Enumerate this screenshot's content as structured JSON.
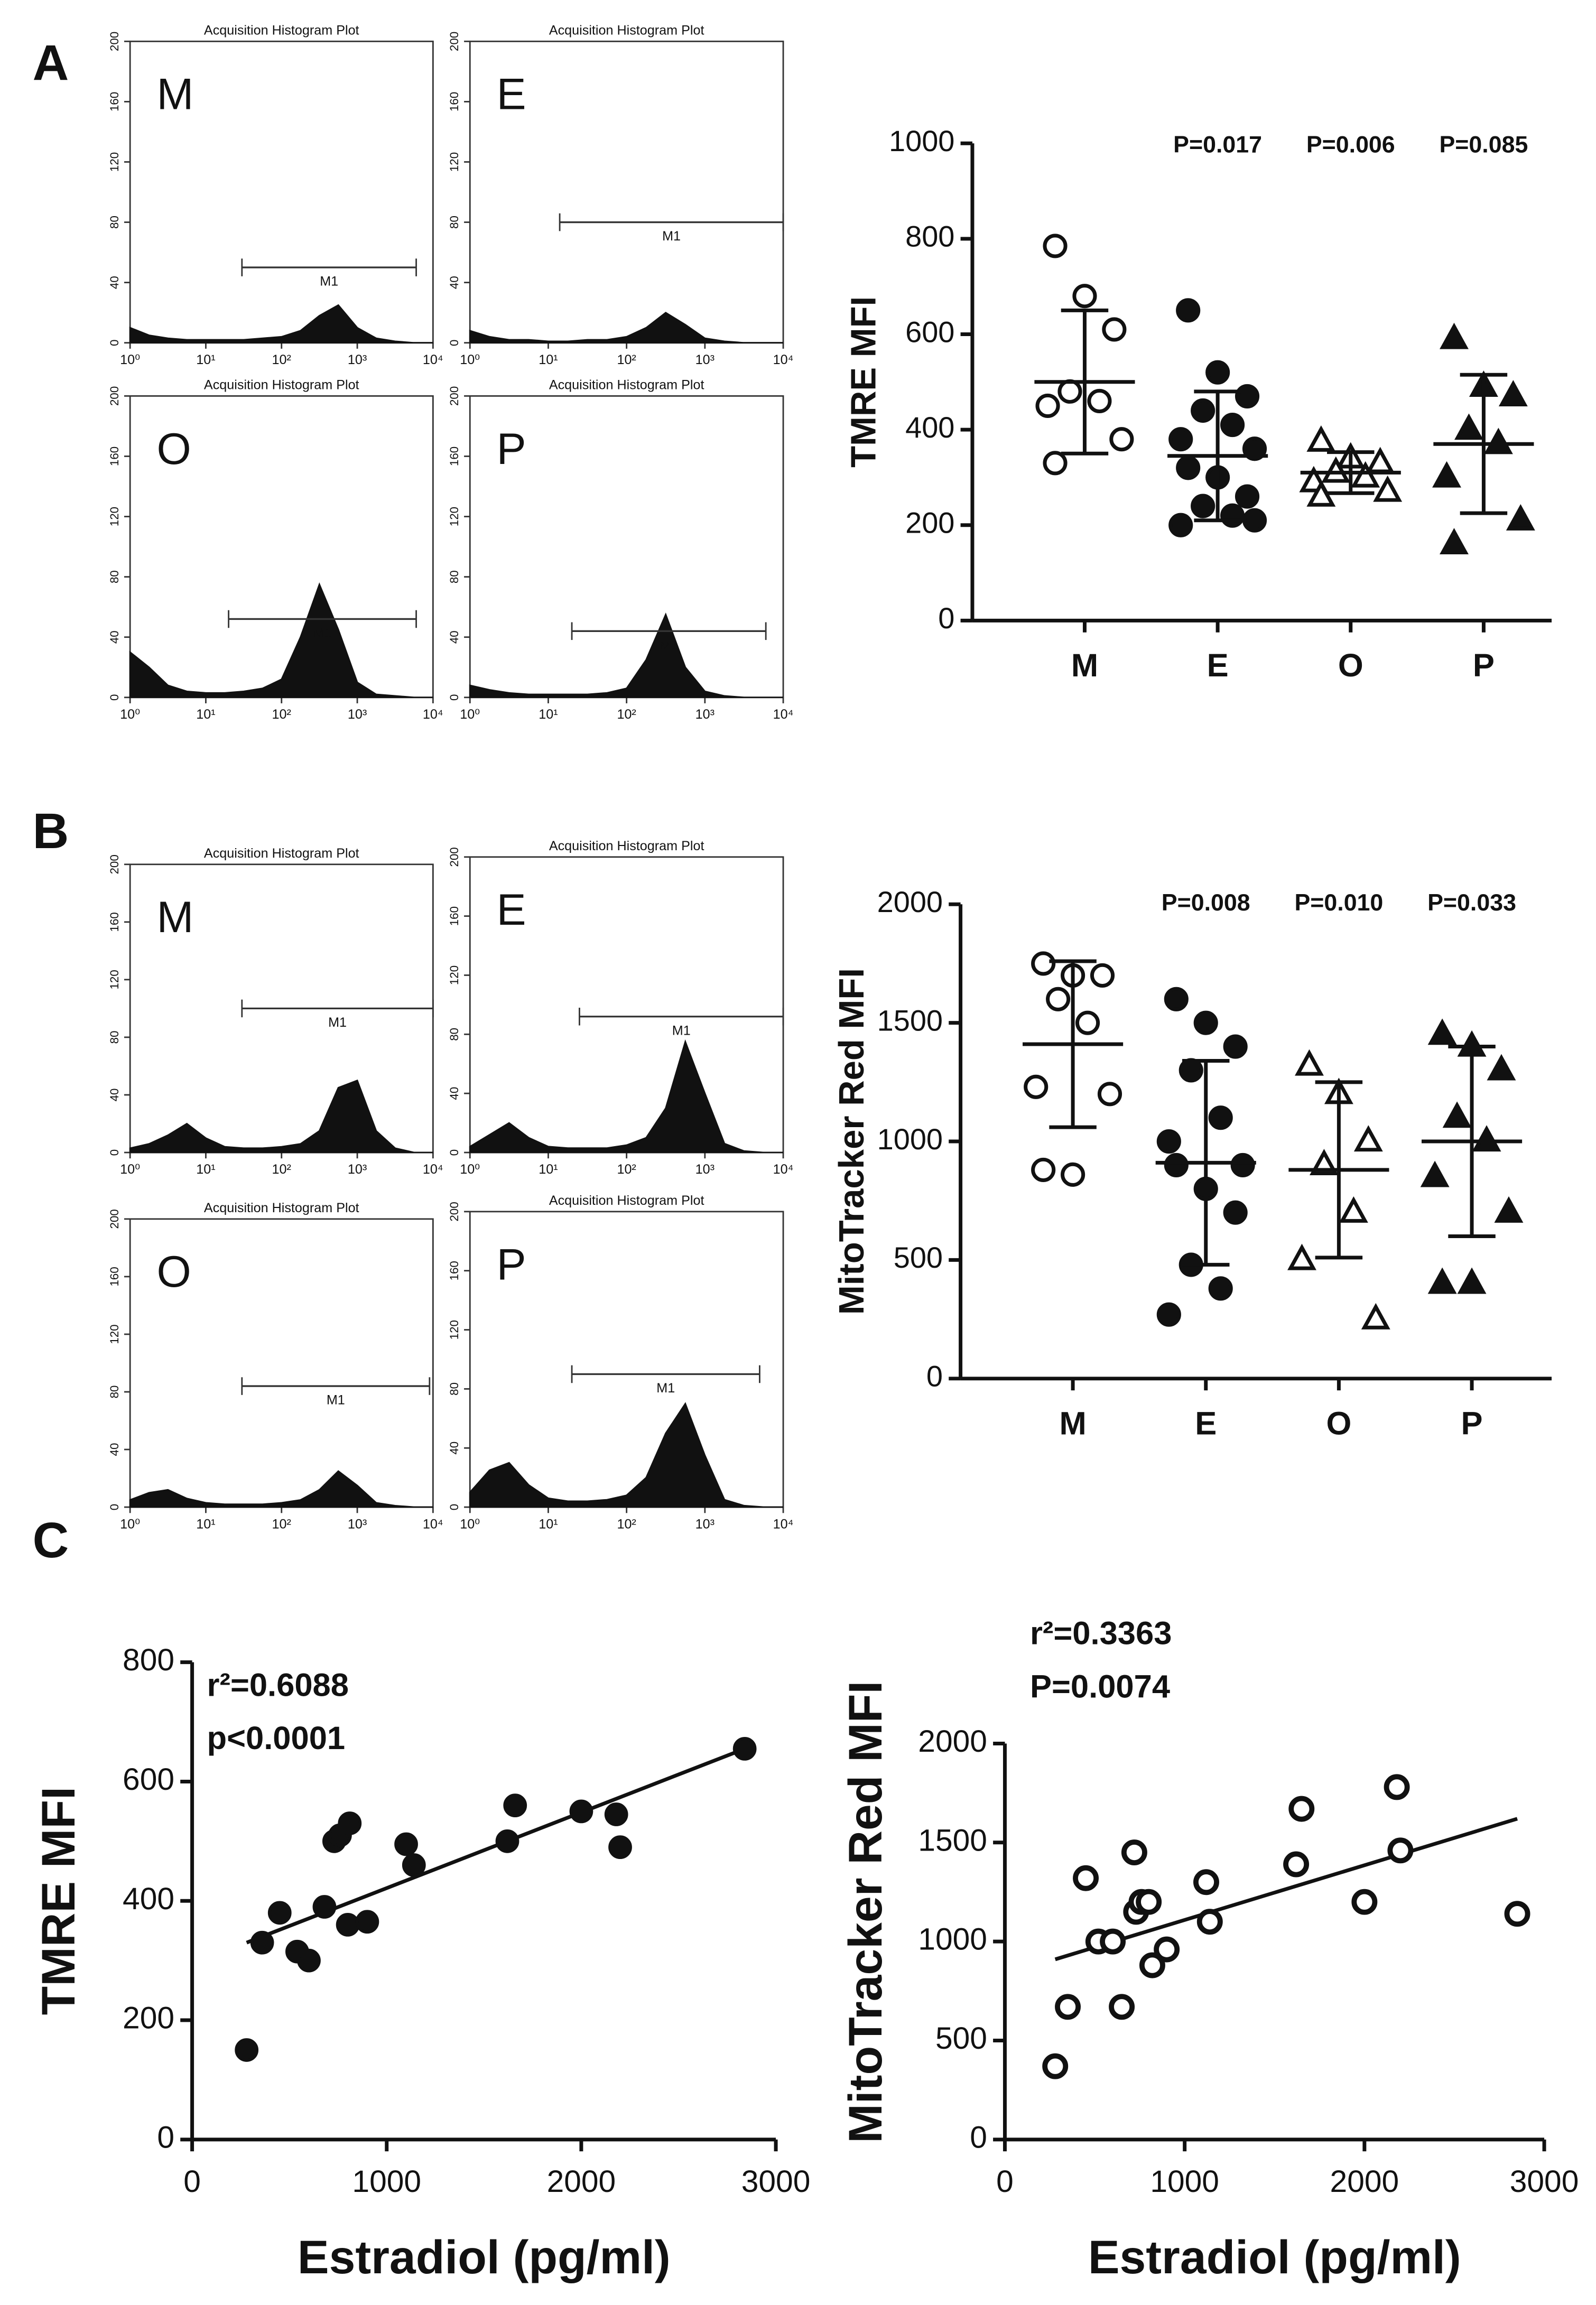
{
  "panel_labels": [
    "A",
    "B",
    "C"
  ],
  "chart_data": [
    {
      "type": "area",
      "title": "Acquisition Histogram Plot",
      "label": "M",
      "xscale": "log",
      "x": [
        1,
        1.78,
        3.16,
        5.62,
        10,
        17.8,
        31.6,
        56.2,
        100,
        178,
        316,
        562,
        1000,
        1778,
        3162,
        5623,
        10000
      ],
      "values": [
        10,
        5,
        3,
        2,
        2,
        2,
        2,
        3,
        4,
        8,
        18,
        25,
        10,
        3,
        1,
        0,
        0
      ],
      "xlim": [
        1,
        10000
      ],
      "xticks": [
        {
          "value": 1,
          "label": "10⁰"
        },
        {
          "value": 10,
          "label": "10¹"
        },
        {
          "value": 100,
          "label": "10²"
        },
        {
          "value": 1000,
          "label": "10³"
        },
        {
          "value": 10000,
          "label": "10⁴"
        }
      ],
      "ylim": [
        0,
        200
      ],
      "yticks": [
        0,
        40,
        80,
        120,
        160,
        200
      ],
      "color": "#111111",
      "gate": {
        "label": "M1",
        "range": [
          30,
          6000
        ]
      }
    },
    {
      "type": "area",
      "title": "Acquisition Histogram Plot",
      "label": "E",
      "xscale": "log",
      "x": [
        1,
        1.78,
        3.16,
        5.62,
        10,
        17.8,
        31.6,
        56.2,
        100,
        178,
        316,
        562,
        1000,
        1778,
        3162,
        5623,
        10000
      ],
      "values": [
        8,
        4,
        2,
        2,
        1,
        1,
        2,
        2,
        4,
        10,
        20,
        12,
        3,
        1,
        0,
        0,
        0
      ],
      "xlim": [
        1,
        10000
      ],
      "xticks": [
        {
          "value": 1,
          "label": "10⁰"
        },
        {
          "value": 10,
          "label": "10¹"
        },
        {
          "value": 100,
          "label": "10²"
        },
        {
          "value": 1000,
          "label": "10³"
        },
        {
          "value": 10000,
          "label": "10⁴"
        }
      ],
      "ylim": [
        0,
        200
      ],
      "yticks": [
        0,
        40,
        80,
        120,
        160,
        200
      ],
      "color": "#111111",
      "gate": {
        "label": "M1",
        "range": [
          14,
          10000
        ]
      }
    },
    {
      "type": "area",
      "title": "Acquisition Histogram Plot",
      "label": "O",
      "xscale": "log",
      "x": [
        1,
        1.78,
        3.16,
        5.62,
        10,
        17.8,
        31.6,
        56.2,
        100,
        178,
        316,
        562,
        1000,
        1778,
        3162,
        5623,
        10000
      ],
      "values": [
        30,
        20,
        8,
        4,
        3,
        3,
        4,
        6,
        12,
        40,
        75,
        45,
        10,
        2,
        1,
        0,
        0
      ],
      "xlim": [
        1,
        10000
      ],
      "xticks": [
        {
          "value": 1,
          "label": "10⁰"
        },
        {
          "value": 10,
          "label": "10¹"
        },
        {
          "value": 100,
          "label": "10²"
        },
        {
          "value": 1000,
          "label": "10³"
        },
        {
          "value": 10000,
          "label": "10⁴"
        }
      ],
      "ylim": [
        0,
        200
      ],
      "yticks": [
        0,
        40,
        80,
        120,
        160,
        200
      ],
      "color": "#111111",
      "gate": {
        "label": "M1",
        "range": [
          20,
          6000
        ]
      }
    },
    {
      "type": "area",
      "title": "Acquisition Histogram Plot",
      "label": "P",
      "xscale": "log",
      "x": [
        1,
        1.78,
        3.16,
        5.62,
        10,
        17.8,
        31.6,
        56.2,
        100,
        178,
        316,
        562,
        1000,
        1778,
        3162,
        5623,
        10000
      ],
      "values": [
        8,
        5,
        3,
        2,
        2,
        2,
        2,
        3,
        6,
        25,
        55,
        20,
        4,
        1,
        0,
        0,
        0
      ],
      "xlim": [
        1,
        10000
      ],
      "xticks": [
        {
          "value": 1,
          "label": "10⁰"
        },
        {
          "value": 10,
          "label": "10¹"
        },
        {
          "value": 100,
          "label": "10²"
        },
        {
          "value": 1000,
          "label": "10³"
        },
        {
          "value": 10000,
          "label": "10⁴"
        }
      ],
      "ylim": [
        0,
        200
      ],
      "yticks": [
        0,
        40,
        80,
        120,
        160,
        200
      ],
      "color": "#111111",
      "gate": {
        "label": "M1",
        "range": [
          20,
          6000
        ]
      }
    },
    {
      "type": "area",
      "title": "Acquisition Histogram Plot",
      "label": "M",
      "xscale": "log",
      "x": [
        1,
        1.78,
        3.16,
        5.62,
        10,
        17.8,
        31.6,
        56.2,
        100,
        178,
        316,
        562,
        1000,
        1778,
        3162,
        5623,
        10000
      ],
      "values": [
        3,
        6,
        12,
        20,
        10,
        4,
        3,
        3,
        4,
        6,
        15,
        45,
        50,
        15,
        3,
        0,
        0
      ],
      "xlim": [
        1,
        10000
      ],
      "xticks": [
        {
          "value": 1,
          "label": "10⁰"
        },
        {
          "value": 10,
          "label": "10¹"
        },
        {
          "value": 100,
          "label": "10²"
        },
        {
          "value": 1000,
          "label": "10³"
        },
        {
          "value": 10000,
          "label": "10⁴"
        }
      ],
      "ylim": [
        0,
        200
      ],
      "yticks": [
        0,
        40,
        80,
        120,
        160,
        200
      ],
      "color": "#111111",
      "gate": {
        "label": "M1",
        "range": [
          30,
          10000
        ]
      }
    },
    {
      "type": "area",
      "title": "Acquisition Histogram Plot",
      "label": "E",
      "xscale": "log",
      "x": [
        1,
        1.78,
        3.16,
        5.62,
        10,
        17.8,
        31.6,
        56.2,
        100,
        178,
        316,
        562,
        1000,
        1778,
        3162,
        5623,
        10000
      ],
      "values": [
        4,
        12,
        20,
        10,
        4,
        3,
        3,
        3,
        5,
        10,
        30,
        75,
        40,
        6,
        1,
        0,
        0
      ],
      "xlim": [
        1,
        10000
      ],
      "xticks": [
        {
          "value": 1,
          "label": "10⁰"
        },
        {
          "value": 10,
          "label": "10¹"
        },
        {
          "value": 100,
          "label": "10²"
        },
        {
          "value": 1000,
          "label": "10³"
        },
        {
          "value": 10000,
          "label": "10⁴"
        }
      ],
      "ylim": [
        0,
        200
      ],
      "yticks": [
        0,
        40,
        80,
        120,
        160,
        200
      ],
      "color": "#111111",
      "gate": {
        "label": "M1",
        "range": [
          25,
          10000
        ]
      }
    },
    {
      "type": "area",
      "title": "Acquisition Histogram Plot",
      "label": "O",
      "xscale": "log",
      "x": [
        1,
        1.78,
        3.16,
        5.62,
        10,
        17.8,
        31.6,
        56.2,
        100,
        178,
        316,
        562,
        1000,
        1778,
        3162,
        5623,
        10000
      ],
      "values": [
        5,
        10,
        12,
        6,
        3,
        2,
        2,
        2,
        3,
        5,
        12,
        25,
        15,
        3,
        1,
        0,
        0
      ],
      "xlim": [
        1,
        10000
      ],
      "xticks": [
        {
          "value": 1,
          "label": "10⁰"
        },
        {
          "value": 10,
          "label": "10¹"
        },
        {
          "value": 100,
          "label": "10²"
        },
        {
          "value": 1000,
          "label": "10³"
        },
        {
          "value": 10000,
          "label": "10⁴"
        }
      ],
      "ylim": [
        0,
        200
      ],
      "yticks": [
        0,
        40,
        80,
        120,
        160,
        200
      ],
      "color": "#111111",
      "gate": {
        "label": "M1",
        "range": [
          30,
          9000
        ]
      }
    },
    {
      "type": "area",
      "title": "Acquisition Histogram Plot",
      "label": "P",
      "xscale": "log",
      "x": [
        1,
        1.78,
        3.16,
        5.62,
        10,
        17.8,
        31.6,
        56.2,
        100,
        178,
        316,
        562,
        1000,
        1778,
        3162,
        5623,
        10000
      ],
      "values": [
        10,
        25,
        30,
        15,
        6,
        4,
        4,
        5,
        8,
        20,
        50,
        70,
        35,
        5,
        1,
        0,
        0
      ],
      "xlim": [
        1,
        10000
      ],
      "xticks": [
        {
          "value": 1,
          "label": "10⁰"
        },
        {
          "value": 10,
          "label": "10¹"
        },
        {
          "value": 100,
          "label": "10²"
        },
        {
          "value": 1000,
          "label": "10³"
        },
        {
          "value": 10000,
          "label": "10⁴"
        }
      ],
      "ylim": [
        0,
        200
      ],
      "yticks": [
        0,
        40,
        80,
        120,
        160,
        200
      ],
      "color": "#111111",
      "gate": {
        "label": "M1",
        "range": [
          20,
          5000
        ]
      }
    },
    {
      "type": "dot",
      "ylabel": "TMRE MFI",
      "ylim": [
        0,
        1000
      ],
      "yticks": [
        0,
        200,
        400,
        600,
        800,
        1000
      ],
      "groups": [
        {
          "name": "M",
          "marker": "circle-open",
          "values": [
            785,
            680,
            610,
            480,
            460,
            450,
            380,
            330
          ],
          "mean": 500,
          "sd": 150
        },
        {
          "name": "E",
          "marker": "circle-filled",
          "values": [
            650,
            520,
            470,
            440,
            410,
            380,
            360,
            320,
            300,
            260,
            240,
            220,
            200,
            210
          ],
          "mean": 345,
          "sd": 135,
          "annotation": "P=0.017"
        },
        {
          "name": "O",
          "marker": "triangle-open",
          "values": [
            375,
            340,
            330,
            310,
            300,
            290,
            270,
            260
          ],
          "mean": 310,
          "sd": 43,
          "annotation": "P=0.006"
        },
        {
          "name": "P",
          "marker": "triangle-filled",
          "values": [
            590,
            490,
            470,
            400,
            370,
            300,
            210,
            160
          ],
          "mean": 370,
          "sd": 145,
          "annotation": "P=0.085"
        }
      ]
    },
    {
      "type": "dot",
      "ylabel": "MitoTracker Red MFI",
      "ylim": [
        0,
        2000
      ],
      "yticks": [
        0,
        500,
        1000,
        1500,
        2000
      ],
      "groups": [
        {
          "name": "M",
          "marker": "circle-open",
          "values": [
            1750,
            1700,
            1700,
            1600,
            1500,
            1230,
            1200,
            880,
            860
          ],
          "mean": 1410,
          "sd": 350
        },
        {
          "name": "E",
          "marker": "circle-filled",
          "values": [
            1600,
            1500,
            1400,
            1300,
            1100,
            1000,
            900,
            900,
            800,
            700,
            480,
            380,
            270
          ],
          "mean": 910,
          "sd": 430,
          "annotation": "P=0.008"
        },
        {
          "name": "O",
          "marker": "triangle-open",
          "values": [
            1320,
            1200,
            1000,
            900,
            700,
            500,
            250
          ],
          "mean": 880,
          "sd": 370,
          "annotation": "P=0.010"
        },
        {
          "name": "P",
          "marker": "triangle-filled",
          "values": [
            1450,
            1400,
            1300,
            1100,
            1000,
            850,
            700,
            400,
            400
          ],
          "mean": 1000,
          "sd": 400,
          "annotation": "P=0.033"
        }
      ]
    },
    {
      "type": "scatter",
      "marker": "circle-filled",
      "xlabel": "Estradiol (pg/ml)",
      "ylabel": "TMRE MFI",
      "annotations": [
        "r²=0.6088",
        "p<0.0001"
      ],
      "x": [
        280,
        360,
        450,
        540,
        600,
        680,
        730,
        760,
        800,
        810,
        900,
        1100,
        1140,
        1620,
        1660,
        2000,
        2180,
        2200,
        2840
      ],
      "values": [
        150,
        330,
        380,
        315,
        300,
        390,
        500,
        510,
        360,
        530,
        365,
        495,
        460,
        500,
        560,
        550,
        545,
        490,
        655
      ],
      "fit": {
        "x": [
          280,
          2840
        ],
        "values": [
          330,
          655
        ]
      },
      "xlim": [
        0,
        3000
      ],
      "xticks": [
        0,
        1000,
        2000,
        3000
      ],
      "ylim": [
        0,
        800
      ],
      "yticks": [
        0,
        200,
        400,
        600,
        800
      ]
    },
    {
      "type": "scatter",
      "marker": "circle-open",
      "xlabel": "Estradiol (pg/ml)",
      "ylabel": "MitoTracker Red MFI",
      "annotations": [
        "r²=0.3363",
        "P=0.0074"
      ],
      "x": [
        280,
        350,
        450,
        520,
        600,
        650,
        720,
        730,
        760,
        800,
        820,
        900,
        1120,
        1140,
        1620,
        1650,
        2000,
        2180,
        2200,
        2850
      ],
      "values": [
        370,
        670,
        1320,
        1000,
        1000,
        670,
        1450,
        1150,
        1200,
        1200,
        880,
        960,
        1300,
        1100,
        1390,
        1670,
        1200,
        1780,
        1460,
        1140
      ],
      "fit": {
        "x": [
          280,
          2850
        ],
        "values": [
          910,
          1620
        ]
      },
      "xlim": [
        0,
        3000
      ],
      "xticks": [
        0,
        1000,
        2000,
        3000
      ],
      "ylim": [
        0,
        2000
      ],
      "yticks": [
        0,
        500,
        1000,
        1500,
        2000
      ]
    }
  ]
}
